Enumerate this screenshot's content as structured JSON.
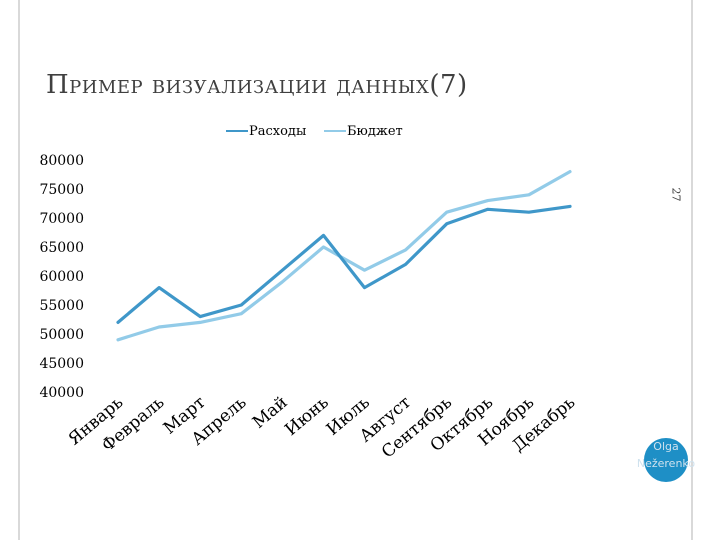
{
  "slide": {
    "title": "Пример визуализации данных(7)",
    "number": "27",
    "author": "Olga Nežerenko"
  },
  "colors": {
    "series1": "#3f97c9",
    "series2": "#92cbe8",
    "badge": "#1e8fc6",
    "text": "#404040"
  },
  "chart_data": {
    "type": "line",
    "title": "",
    "xlabel": "",
    "ylabel": "",
    "ylim": [
      40000,
      80000
    ],
    "yticks": [
      40000,
      45000,
      50000,
      55000,
      60000,
      65000,
      70000,
      75000,
      80000
    ],
    "legend": "top",
    "grid": false,
    "categories": [
      "Январь",
      "Февраль",
      "Март",
      "Апрель",
      "Май",
      "Июнь",
      "Июль",
      "Август",
      "Сентябрь",
      "Октябрь",
      "Ноябрь",
      "Декабрь"
    ],
    "series": [
      {
        "name": "Расходы",
        "color": "#3f97c9",
        "values": [
          52000,
          58000,
          53000,
          55000,
          61000,
          67000,
          58000,
          62000,
          69000,
          71500,
          71000,
          72000
        ]
      },
      {
        "name": "Бюджет",
        "color": "#92cbe8",
        "values": [
          49000,
          51200,
          52000,
          53500,
          59000,
          65000,
          61000,
          64500,
          71000,
          73000,
          74000,
          78000
        ]
      }
    ]
  }
}
